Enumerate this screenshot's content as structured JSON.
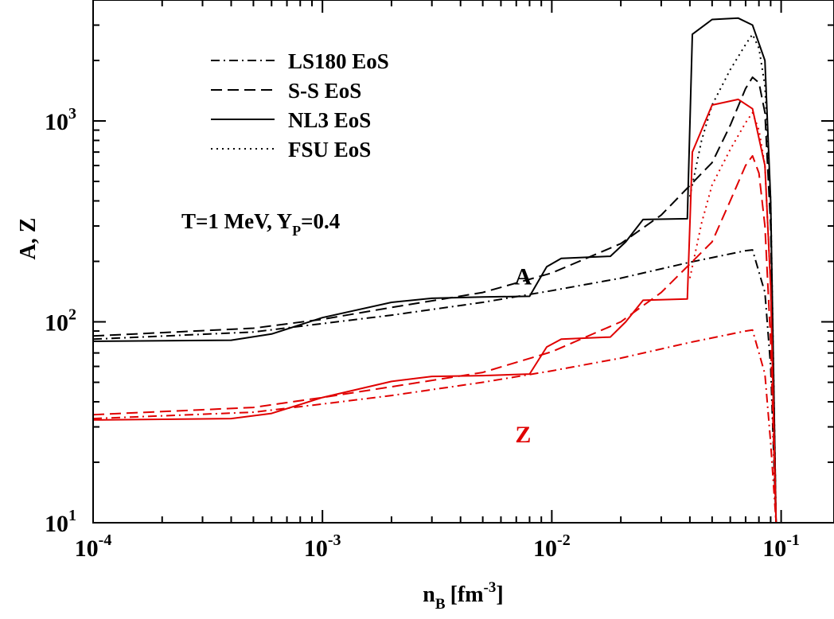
{
  "chart_data": {
    "type": "line",
    "xlabel_main": "n",
    "xlabel_sub": "B",
    "xlabel_unit_pre": "[fm",
    "xlabel_unit_sup": "-3",
    "xlabel_unit_post": "]",
    "ylabel": "A, Z",
    "xscale": "log",
    "yscale": "log",
    "xlim": [
      0.0001,
      0.17
    ],
    "ylim": [
      10,
      4000
    ],
    "x_ticks": [
      {
        "base": "10",
        "exp": "-4",
        "value": 0.0001
      },
      {
        "base": "10",
        "exp": "-3",
        "value": 0.001
      },
      {
        "base": "10",
        "exp": "-2",
        "value": 0.01
      },
      {
        "base": "10",
        "exp": "-1",
        "value": 0.1
      }
    ],
    "y_ticks": [
      {
        "base": "10",
        "exp": "1",
        "value": 10
      },
      {
        "base": "10",
        "exp": "2",
        "value": 100
      },
      {
        "base": "10",
        "exp": "3",
        "value": 1000
      }
    ],
    "annotation": {
      "main": "T=1 MeV, Y",
      "sub": "P",
      "post": "=0.4"
    },
    "curve_labels": [
      {
        "text": "A",
        "color": "#000000",
        "x": 0.0075,
        "y": 168
      },
      {
        "text": "Z",
        "color": "#e00000",
        "x": 0.0075,
        "y": 27.5
      }
    ],
    "legend": {
      "placement": "top-left",
      "entries": [
        {
          "label": "LS180 EoS",
          "dash": "dashdot"
        },
        {
          "label": "S-S EoS",
          "dash": "dashed"
        },
        {
          "label": "NL3 EoS",
          "dash": "solid"
        },
        {
          "label": "FSU EoS",
          "dash": "dotted"
        }
      ]
    },
    "colors": {
      "A": "#000000",
      "Z": "#e00000"
    },
    "series": [
      {
        "group": "A",
        "dash": "dashdot",
        "color": "#000000",
        "x": [
          0.0001,
          0.0005,
          0.001,
          0.002,
          0.005,
          0.01,
          0.02,
          0.04,
          0.07,
          0.075,
          0.085,
          0.09,
          0.095
        ],
        "y": [
          82,
          89,
          98,
          108,
          125,
          143,
          165,
          198,
          226,
          228,
          140,
          60,
          10
        ]
      },
      {
        "group": "A",
        "dash": "dashed",
        "color": "#000000",
        "x": [
          0.0001,
          0.0005,
          0.001,
          0.002,
          0.005,
          0.01,
          0.02,
          0.03,
          0.05,
          0.06,
          0.07,
          0.075,
          0.08,
          0.085,
          0.09,
          0.095
        ],
        "y": [
          85,
          93,
          103,
          118,
          140,
          175,
          245,
          340,
          620,
          950,
          1450,
          1650,
          1550,
          1100,
          300,
          10
        ]
      },
      {
        "group": "A",
        "dash": "solid",
        "color": "#000000",
        "x": [
          0.0001,
          0.0004,
          0.0006,
          0.001,
          0.002,
          0.003,
          0.005,
          0.008,
          0.0095,
          0.011,
          0.018,
          0.021,
          0.025,
          0.039,
          0.041,
          0.05,
          0.065,
          0.075,
          0.085,
          0.09,
          0.095
        ],
        "y": [
          80,
          81,
          87,
          105,
          125,
          131,
          133,
          134,
          188,
          207,
          212,
          250,
          323,
          326,
          2700,
          3200,
          3250,
          3000,
          2000,
          400,
          10
        ]
      },
      {
        "group": "A",
        "dash": "dotted",
        "color": "#000000",
        "x": [
          0.04,
          0.045,
          0.05,
          0.06,
          0.07,
          0.075,
          0.08,
          0.085,
          0.09,
          0.095
        ],
        "y": [
          420,
          800,
          1200,
          1800,
          2400,
          2700,
          2300,
          1500,
          400,
          10
        ]
      },
      {
        "group": "Z",
        "dash": "dashdot",
        "color": "#e00000",
        "x": [
          0.0001,
          0.0005,
          0.001,
          0.002,
          0.005,
          0.01,
          0.02,
          0.04,
          0.07,
          0.075,
          0.085,
          0.09,
          0.095
        ],
        "y": [
          33,
          35.5,
          39,
          43,
          50,
          57,
          66,
          79,
          90,
          91,
          55,
          25,
          10
        ]
      },
      {
        "group": "Z",
        "dash": "dashed",
        "color": "#e00000",
        "x": [
          0.0001,
          0.0005,
          0.001,
          0.002,
          0.005,
          0.01,
          0.02,
          0.03,
          0.05,
          0.06,
          0.07,
          0.075,
          0.08,
          0.085,
          0.09,
          0.095
        ],
        "y": [
          34.5,
          37.5,
          42,
          47.5,
          56,
          71,
          100,
          140,
          250,
          400,
          600,
          670,
          550,
          300,
          80,
          10
        ]
      },
      {
        "group": "Z",
        "dash": "solid",
        "color": "#e00000",
        "x": [
          0.0001,
          0.0004,
          0.0006,
          0.001,
          0.002,
          0.003,
          0.005,
          0.008,
          0.0095,
          0.011,
          0.018,
          0.021,
          0.025,
          0.039,
          0.041,
          0.05,
          0.065,
          0.075,
          0.085,
          0.09,
          0.095
        ],
        "y": [
          32.5,
          33,
          35,
          42,
          50.5,
          53.5,
          54,
          55,
          75,
          82,
          84,
          100,
          128,
          130,
          700,
          1200,
          1280,
          1150,
          600,
          150,
          10
        ]
      },
      {
        "group": "Z",
        "dash": "dotted",
        "color": "#e00000",
        "x": [
          0.04,
          0.045,
          0.05,
          0.06,
          0.07,
          0.075,
          0.08,
          0.085,
          0.09,
          0.095
        ],
        "y": [
          165,
          310,
          480,
          720,
          980,
          1100,
          900,
          600,
          150,
          10
        ]
      }
    ]
  }
}
